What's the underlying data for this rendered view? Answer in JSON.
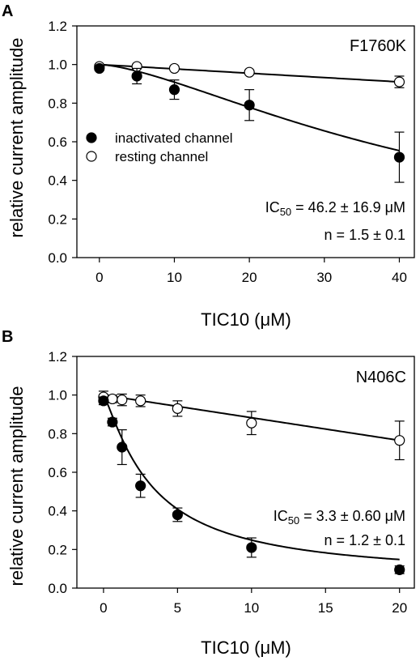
{
  "chart_data": [
    {
      "panel": "A",
      "type": "scatter",
      "title": "F1760K",
      "xlabel": "TIC10 (μM)",
      "ylabel": "relative current amplitude",
      "xlim": [
        -3,
        42
      ],
      "ylim": [
        0,
        1.2
      ],
      "xticks": [
        0,
        10,
        20,
        30,
        40
      ],
      "yticks": [
        0.0,
        0.2,
        0.4,
        0.6,
        0.8,
        1.0,
        1.2
      ],
      "ic50_text": "IC50 = 46.2 ± 16.9 μM",
      "ic50_prefix": "IC",
      "ic50_sub": "50",
      "ic50_rest": " = 46.2 ± 16.9 μM",
      "n_text": "n = 1.5 ± 0.1",
      "legend": {
        "placement": "middle-left",
        "entries": [
          "inactivated channel",
          "resting channel"
        ]
      },
      "series": [
        {
          "name": "inactivated channel",
          "marker": "filled-circle",
          "x": [
            0,
            5,
            10,
            20,
            40
          ],
          "y": [
            0.98,
            0.94,
            0.87,
            0.79,
            0.52
          ],
          "err": [
            0.01,
            0.04,
            0.05,
            0.08,
            0.13
          ],
          "fit": {
            "ic50": 46.2,
            "n": 1.5
          }
        },
        {
          "name": "resting channel",
          "marker": "open-circle",
          "x": [
            0,
            5,
            10,
            20,
            40
          ],
          "y": [
            0.99,
            0.99,
            0.98,
            0.96,
            0.91
          ],
          "err": [
            0.01,
            0.01,
            0.01,
            0.01,
            0.03
          ],
          "fit": {
            "linear": [
              1.0,
              0.91
            ]
          }
        }
      ]
    },
    {
      "panel": "B",
      "type": "scatter",
      "title": "N406C",
      "xlabel": "TIC10 (μM)",
      "ylabel": "relative current amplitude",
      "xlim": [
        -1.8,
        21
      ],
      "ylim": [
        0,
        1.2
      ],
      "xticks": [
        0,
        5,
        10,
        15,
        20
      ],
      "yticks": [
        0.0,
        0.2,
        0.4,
        0.6,
        0.8,
        1.0,
        1.2
      ],
      "ic50_text": "IC50 = 3.3 ± 0.60 μM",
      "ic50_prefix": "IC",
      "ic50_sub": "50",
      "ic50_rest": " = 3.3 ± 0.60 μM",
      "n_text": "n = 1.2 ± 0.1",
      "series": [
        {
          "name": "inactivated channel",
          "marker": "filled-circle",
          "x": [
            0,
            0.6,
            1.25,
            2.5,
            5,
            10,
            20
          ],
          "y": [
            0.97,
            0.86,
            0.73,
            0.53,
            0.38,
            0.21,
            0.095
          ],
          "err": [
            0.02,
            0.02,
            0.09,
            0.06,
            0.035,
            0.05,
            0.02
          ],
          "fit": {
            "ic50": 3.3,
            "n": 1.2,
            "floor": 0.05
          }
        },
        {
          "name": "resting channel",
          "marker": "open-circle",
          "x": [
            0,
            0.6,
            1.25,
            2.5,
            5,
            10,
            20
          ],
          "y": [
            0.99,
            0.98,
            0.975,
            0.97,
            0.93,
            0.855,
            0.765
          ],
          "err": [
            0.03,
            0.02,
            0.03,
            0.03,
            0.04,
            0.06,
            0.1
          ],
          "fit": {
            "linear": [
              1.0,
              0.765
            ]
          }
        }
      ]
    }
  ]
}
